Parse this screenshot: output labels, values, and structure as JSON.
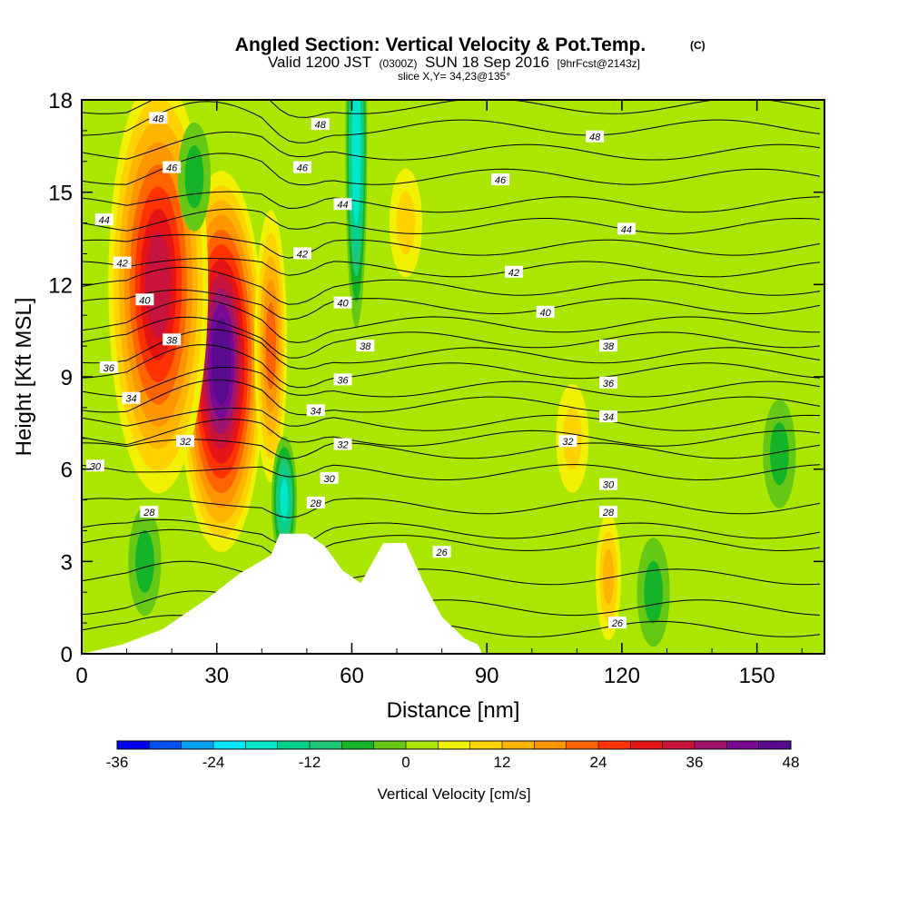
{
  "title": {
    "main": "Angled Section: Vertical Velocity & Pot.Temp.",
    "unit_tag": "(C)",
    "valid_prefix": "Valid 1200 JST",
    "valid_utc": "(0300Z)",
    "valid_date": "SUN 18 Sep 2016",
    "forecast_tag": "[9hrFcst@2143z]",
    "slice": "slice X,Y= 34,23@135°"
  },
  "chart_data": {
    "type": "heatmap",
    "xlabel": "Distance [nm]",
    "ylabel": "Height [Kft MSL]",
    "xlim": [
      0,
      165
    ],
    "ylim": [
      0,
      18
    ],
    "x_ticks": [
      "0",
      "30",
      "60",
      "90",
      "120",
      "150"
    ],
    "y_ticks": [
      "0",
      "3",
      "6",
      "9",
      "12",
      "15",
      "18"
    ],
    "colorbar": {
      "title": "Vertical Velocity [cm/s]",
      "range": [
        -36,
        48
      ],
      "tick_labels": [
        "-36",
        "-24",
        "-12",
        "0",
        "12",
        "24",
        "36",
        "48"
      ],
      "colors": [
        "#0000f0",
        "#0050f0",
        "#00a0f0",
        "#00e6ff",
        "#00e6c8",
        "#00d28c",
        "#1ec878",
        "#14b428",
        "#64c814",
        "#aae600",
        "#f0f000",
        "#ffd200",
        "#ffb400",
        "#ff9600",
        "#ff6400",
        "#ff3200",
        "#e61414",
        "#c8143c",
        "#a0146e",
        "#780a96",
        "#5a0a8c"
      ]
    },
    "velocity_features": [
      {
        "label": "updraft core",
        "x_nm": 31,
        "height_kft": 9.5,
        "w_cms": 44
      },
      {
        "label": "updraft lobe",
        "x_nm": 17,
        "height_kft": 12.0,
        "w_cms": 33
      },
      {
        "label": "secondary updraft",
        "x_nm": 42,
        "height_kft": 10.0,
        "w_cms": 22
      },
      {
        "label": "downdraft",
        "x_nm": 45,
        "height_kft": 5.0,
        "w_cms": -18
      },
      {
        "label": "downdraft aloft",
        "x_nm": 61,
        "height_kft": 16.5,
        "w_cms": -20
      },
      {
        "label": "updraft",
        "x_nm": 72,
        "height_kft": 14.0,
        "w_cms": 10
      },
      {
        "label": "updraft low",
        "x_nm": 117,
        "height_kft": 2.5,
        "w_cms": 14
      },
      {
        "label": "updraft",
        "x_nm": 109,
        "height_kft": 7.0,
        "w_cms": 9
      },
      {
        "label": "sink",
        "x_nm": 25,
        "height_kft": 15.5,
        "w_cms": -7
      },
      {
        "label": "sink",
        "x_nm": 14,
        "height_kft": 3.0,
        "w_cms": -7
      },
      {
        "label": "sink",
        "x_nm": 127,
        "height_kft": 2.0,
        "w_cms": -7
      },
      {
        "label": "sink",
        "x_nm": 155,
        "height_kft": 6.5,
        "w_cms": -7
      }
    ],
    "isentropes_C": [
      26,
      28,
      30,
      32,
      34,
      36,
      38,
      40,
      42,
      44,
      46,
      48
    ],
    "contour_labels": [
      {
        "text": "48",
        "x": 17,
        "y": 17.4
      },
      {
        "text": "48",
        "x": 53,
        "y": 17.2
      },
      {
        "text": "48",
        "x": 114,
        "y": 16.8
      },
      {
        "text": "46",
        "x": 20,
        "y": 15.8
      },
      {
        "text": "46",
        "x": 49,
        "y": 15.8
      },
      {
        "text": "46",
        "x": 93,
        "y": 15.4
      },
      {
        "text": "44",
        "x": 5,
        "y": 14.1
      },
      {
        "text": "44",
        "x": 58,
        "y": 14.6
      },
      {
        "text": "44",
        "x": 121,
        "y": 13.8
      },
      {
        "text": "42",
        "x": 9,
        "y": 12.7
      },
      {
        "text": "42",
        "x": 49,
        "y": 13.0
      },
      {
        "text": "42",
        "x": 96,
        "y": 12.4
      },
      {
        "text": "40",
        "x": 14,
        "y": 11.5
      },
      {
        "text": "40",
        "x": 58,
        "y": 11.4
      },
      {
        "text": "40",
        "x": 103,
        "y": 11.1
      },
      {
        "text": "38",
        "x": 20,
        "y": 10.2
      },
      {
        "text": "38",
        "x": 63,
        "y": 10.0
      },
      {
        "text": "38",
        "x": 117,
        "y": 10.0
      },
      {
        "text": "36",
        "x": 6,
        "y": 9.3
      },
      {
        "text": "36",
        "x": 58,
        "y": 8.9
      },
      {
        "text": "36",
        "x": 117,
        "y": 8.8
      },
      {
        "text": "34",
        "x": 11,
        "y": 8.3
      },
      {
        "text": "34",
        "x": 52,
        "y": 7.9
      },
      {
        "text": "34",
        "x": 117,
        "y": 7.7
      },
      {
        "text": "32",
        "x": 23,
        "y": 6.9
      },
      {
        "text": "32",
        "x": 58,
        "y": 6.8
      },
      {
        "text": "32",
        "x": 108,
        "y": 6.9
      },
      {
        "text": "30",
        "x": 3,
        "y": 6.1
      },
      {
        "text": "30",
        "x": 55,
        "y": 5.7
      },
      {
        "text": "30",
        "x": 117,
        "y": 5.5
      },
      {
        "text": "28",
        "x": 15,
        "y": 4.6
      },
      {
        "text": "28",
        "x": 52,
        "y": 4.9
      },
      {
        "text": "28",
        "x": 117,
        "y": 4.6
      },
      {
        "text": "26",
        "x": 80,
        "y": 3.3
      },
      {
        "text": "26",
        "x": 119,
        "y": 1.0
      }
    ],
    "terrain_kft": [
      [
        0,
        0
      ],
      [
        9,
        0.3
      ],
      [
        18,
        0.8
      ],
      [
        23,
        1.3
      ],
      [
        28,
        1.8
      ],
      [
        35,
        2.6
      ],
      [
        42,
        3.2
      ],
      [
        44,
        3.9
      ],
      [
        50,
        3.9
      ],
      [
        54,
        3.5
      ],
      [
        58,
        2.7
      ],
      [
        62,
        2.3
      ],
      [
        67,
        3.6
      ],
      [
        72,
        3.6
      ],
      [
        76,
        2.3
      ],
      [
        80,
        1.2
      ],
      [
        85,
        0.5
      ],
      [
        88,
        0.3
      ],
      [
        89,
        0
      ]
    ],
    "grid": false
  }
}
